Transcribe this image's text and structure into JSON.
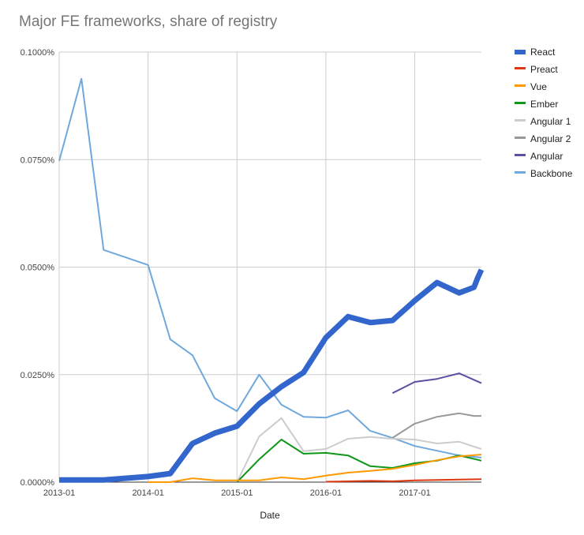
{
  "chart_data": {
    "type": "line",
    "title": "Major FE frameworks, share of registry",
    "xlabel": "Date",
    "ylabel": "",
    "x_unit": "months since 2013-01",
    "xlim": [
      0,
      57
    ],
    "ylim": [
      0,
      0.1
    ],
    "y_ticks": [
      0,
      0.025,
      0.05,
      0.075,
      0.1
    ],
    "y_tick_labels": [
      "0.0000%",
      "0.0250%",
      "0.0500%",
      "0.0750%",
      "0.1000%"
    ],
    "x_ticks": [
      0,
      12,
      24,
      36,
      48
    ],
    "x_tick_labels": [
      "2013-01",
      "2014-01",
      "2015-01",
      "2016-01",
      "2017-01"
    ],
    "grid": true,
    "legend_position": "right",
    "series": [
      {
        "name": "React",
        "color": "#3366cc",
        "width": 7,
        "x": [
          0,
          6,
          12,
          15,
          18,
          21,
          24,
          27,
          30,
          33,
          36,
          39,
          42,
          45,
          48,
          51,
          54,
          56,
          56.5,
          57
        ],
        "y": [
          0.0005,
          0.0005,
          0.0013,
          0.002,
          0.009,
          0.0114,
          0.013,
          0.0182,
          0.0222,
          0.0255,
          0.0336,
          0.0385,
          0.0371,
          0.0376,
          0.0422,
          0.0464,
          0.044,
          0.0453,
          0.0475,
          0.0494
        ]
      },
      {
        "name": "Preact",
        "color": "#dc3912",
        "width": 2,
        "x": [
          36,
          42,
          45,
          48,
          51,
          54,
          57
        ],
        "y": [
          0.0001,
          0.0003,
          0.0002,
          0.0004,
          0.0005,
          0.0006,
          0.0007
        ]
      },
      {
        "name": "Vue",
        "color": "#ff9900",
        "width": 2,
        "x": [
          12,
          15,
          18,
          21,
          24,
          27,
          30,
          33,
          36,
          39,
          42,
          45,
          48,
          51,
          54,
          57
        ],
        "y": [
          0,
          0,
          0.0009,
          0.0004,
          0.0004,
          0.0004,
          0.0011,
          0.0007,
          0.0015,
          0.0022,
          0.0026,
          0.0031,
          0.004,
          0.0051,
          0.006,
          0.0064
        ]
      },
      {
        "name": "Ember",
        "color": "#109618",
        "width": 2,
        "x": [
          24,
          27,
          30,
          33,
          36,
          39,
          42,
          45,
          48,
          51,
          54,
          57
        ],
        "y": [
          0,
          0.0053,
          0.0099,
          0.0066,
          0.0068,
          0.0062,
          0.0037,
          0.0033,
          0.0044,
          0.005,
          0.0062,
          0.005
        ]
      },
      {
        "name": "Angular 1",
        "color": "#cccccc",
        "width": 2,
        "x": [
          24,
          27,
          30,
          33,
          36,
          39,
          42,
          45,
          48,
          51,
          54,
          57
        ],
        "y": [
          0,
          0.0106,
          0.0149,
          0.0072,
          0.0077,
          0.0101,
          0.0105,
          0.0101,
          0.0099,
          0.009,
          0.0094,
          0.0077
        ]
      },
      {
        "name": "Angular 2",
        "color": "#999999",
        "width": 2,
        "x": [
          45,
          48,
          51,
          54,
          56,
          57
        ],
        "y": [
          0.0103,
          0.0136,
          0.0152,
          0.016,
          0.0154,
          0.0154
        ]
      },
      {
        "name": "Angular",
        "color": "#5e4fa2",
        "width": 2,
        "x": [
          45,
          48,
          51,
          54,
          57
        ],
        "y": [
          0.0207,
          0.0233,
          0.024,
          0.0253,
          0.023
        ]
      },
      {
        "name": "Backbone",
        "color": "#6fa8dc",
        "width": 2,
        "x": [
          0,
          3,
          6,
          12,
          15,
          18,
          21,
          24,
          27,
          30,
          33,
          36,
          39,
          42,
          45,
          48,
          51,
          54,
          57
        ],
        "y": [
          0.0747,
          0.0938,
          0.054,
          0.0505,
          0.0332,
          0.0295,
          0.0195,
          0.0165,
          0.025,
          0.018,
          0.0152,
          0.015,
          0.0167,
          0.0119,
          0.0103,
          0.0084,
          0.0073,
          0.0062,
          0.0057
        ]
      }
    ]
  }
}
